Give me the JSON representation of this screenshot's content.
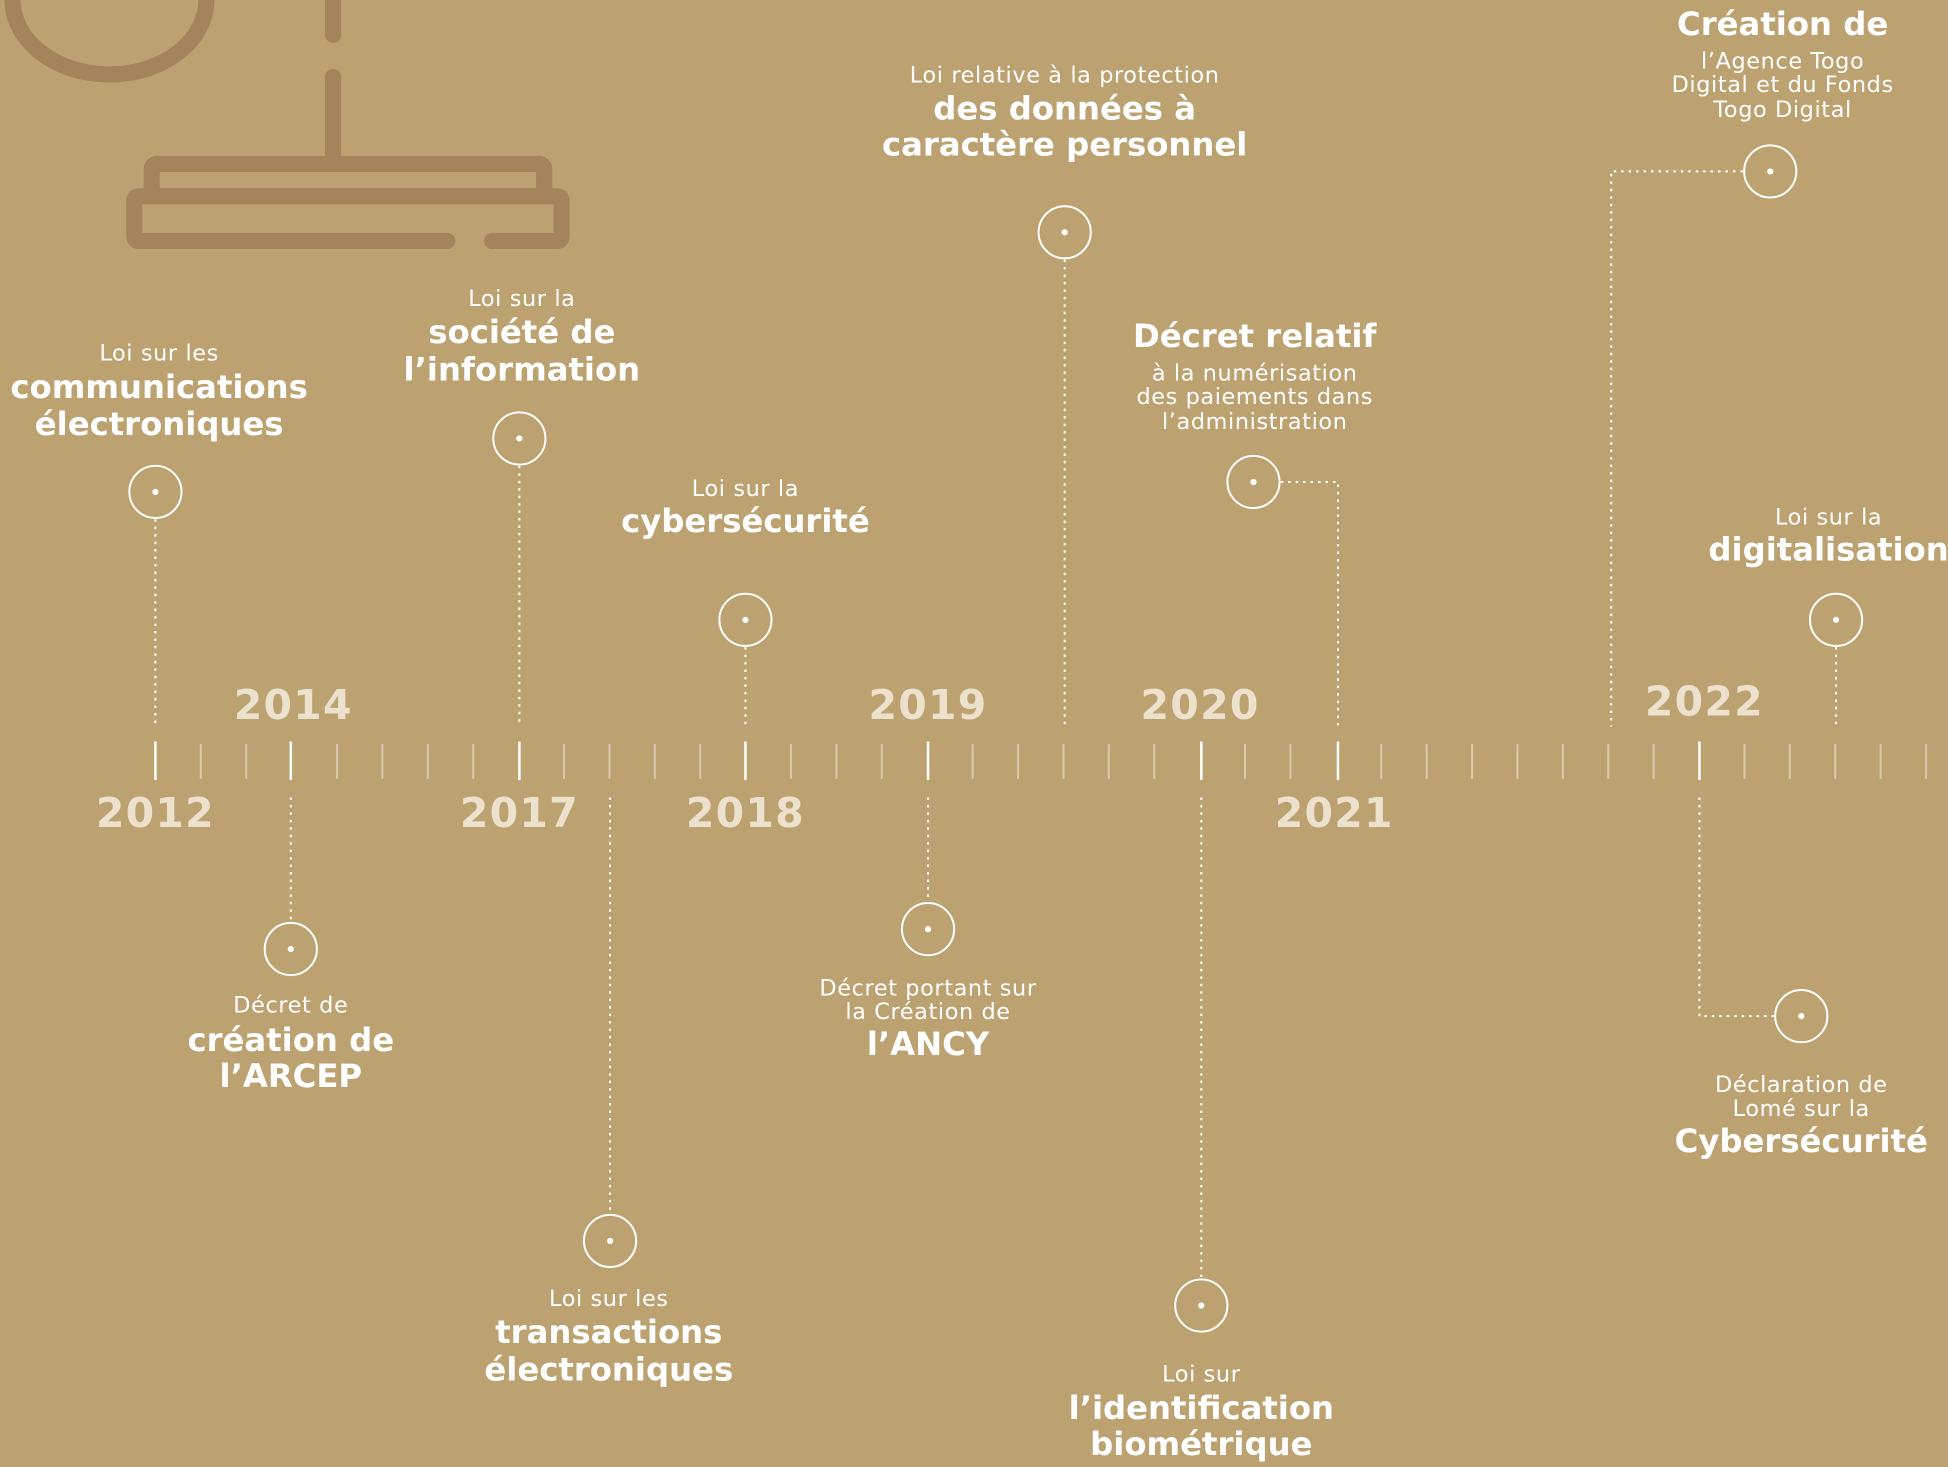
{
  "years": [
    "2012",
    "2014",
    "2017",
    "2018",
    "2019",
    "2020",
    "2021",
    "2022"
  ],
  "events": [
    {
      "lines": [
        {
          "text": "Loi sur les",
          "bold": false
        },
        {
          "text": "communications",
          "bold": true
        },
        {
          "text": "électroniques",
          "bold": true
        }
      ]
    },
    {
      "lines": [
        {
          "text": "Décret de",
          "bold": false
        },
        {
          "text": "création de",
          "bold": true
        },
        {
          "text": "l’ARCEP",
          "bold": true
        }
      ]
    },
    {
      "lines": [
        {
          "text": "Loi sur la",
          "bold": false
        },
        {
          "text": "société de",
          "bold": true
        },
        {
          "text": "l’information",
          "bold": true
        }
      ]
    },
    {
      "lines": [
        {
          "text": "Loi sur les",
          "bold": false
        },
        {
          "text": "transactions",
          "bold": true
        },
        {
          "text": "électroniques",
          "bold": true
        }
      ]
    },
    {
      "lines": [
        {
          "text": "Loi sur la",
          "bold": false
        },
        {
          "text": "cybersécurité",
          "bold": true
        }
      ]
    },
    {
      "lines": [
        {
          "text": "Décret portant sur",
          "bold": false
        },
        {
          "text": "la Création de",
          "bold": false
        },
        {
          "text": "l’ANCY",
          "bold": true
        }
      ]
    },
    {
      "lines": [
        {
          "text": "Loi relative à la protection",
          "bold": false
        },
        {
          "text": "des données à",
          "bold": true
        },
        {
          "text": "caractère personnel",
          "bold": true
        }
      ]
    },
    {
      "lines": [
        {
          "text": "Décret relatif",
          "bold": true
        },
        {
          "text": "à la numérisation",
          "bold": false
        },
        {
          "text": "des paiements dans",
          "bold": false
        },
        {
          "text": "l’administration",
          "bold": false
        }
      ]
    },
    {
      "lines": [
        {
          "text": "Loi sur",
          "bold": false
        },
        {
          "text": "l’identification",
          "bold": true
        },
        {
          "text": "biométrique",
          "bold": true
        }
      ]
    },
    {
      "lines": [
        {
          "text": "Création de",
          "bold": true
        },
        {
          "text": "l’Agence Togo",
          "bold": false
        },
        {
          "text": "Digital et du Fonds",
          "bold": false
        },
        {
          "text": "Togo Digital",
          "bold": false
        }
      ]
    },
    {
      "lines": [
        {
          "text": "Loi sur la",
          "bold": false
        },
        {
          "text": "digitalisation",
          "bold": true
        }
      ]
    },
    {
      "lines": [
        {
          "text": "Déclaration de",
          "bold": false
        },
        {
          "text": "Lomé sur la",
          "bold": false
        },
        {
          "text": "Cybersécurité",
          "bold": true
        }
      ]
    }
  ]
}
